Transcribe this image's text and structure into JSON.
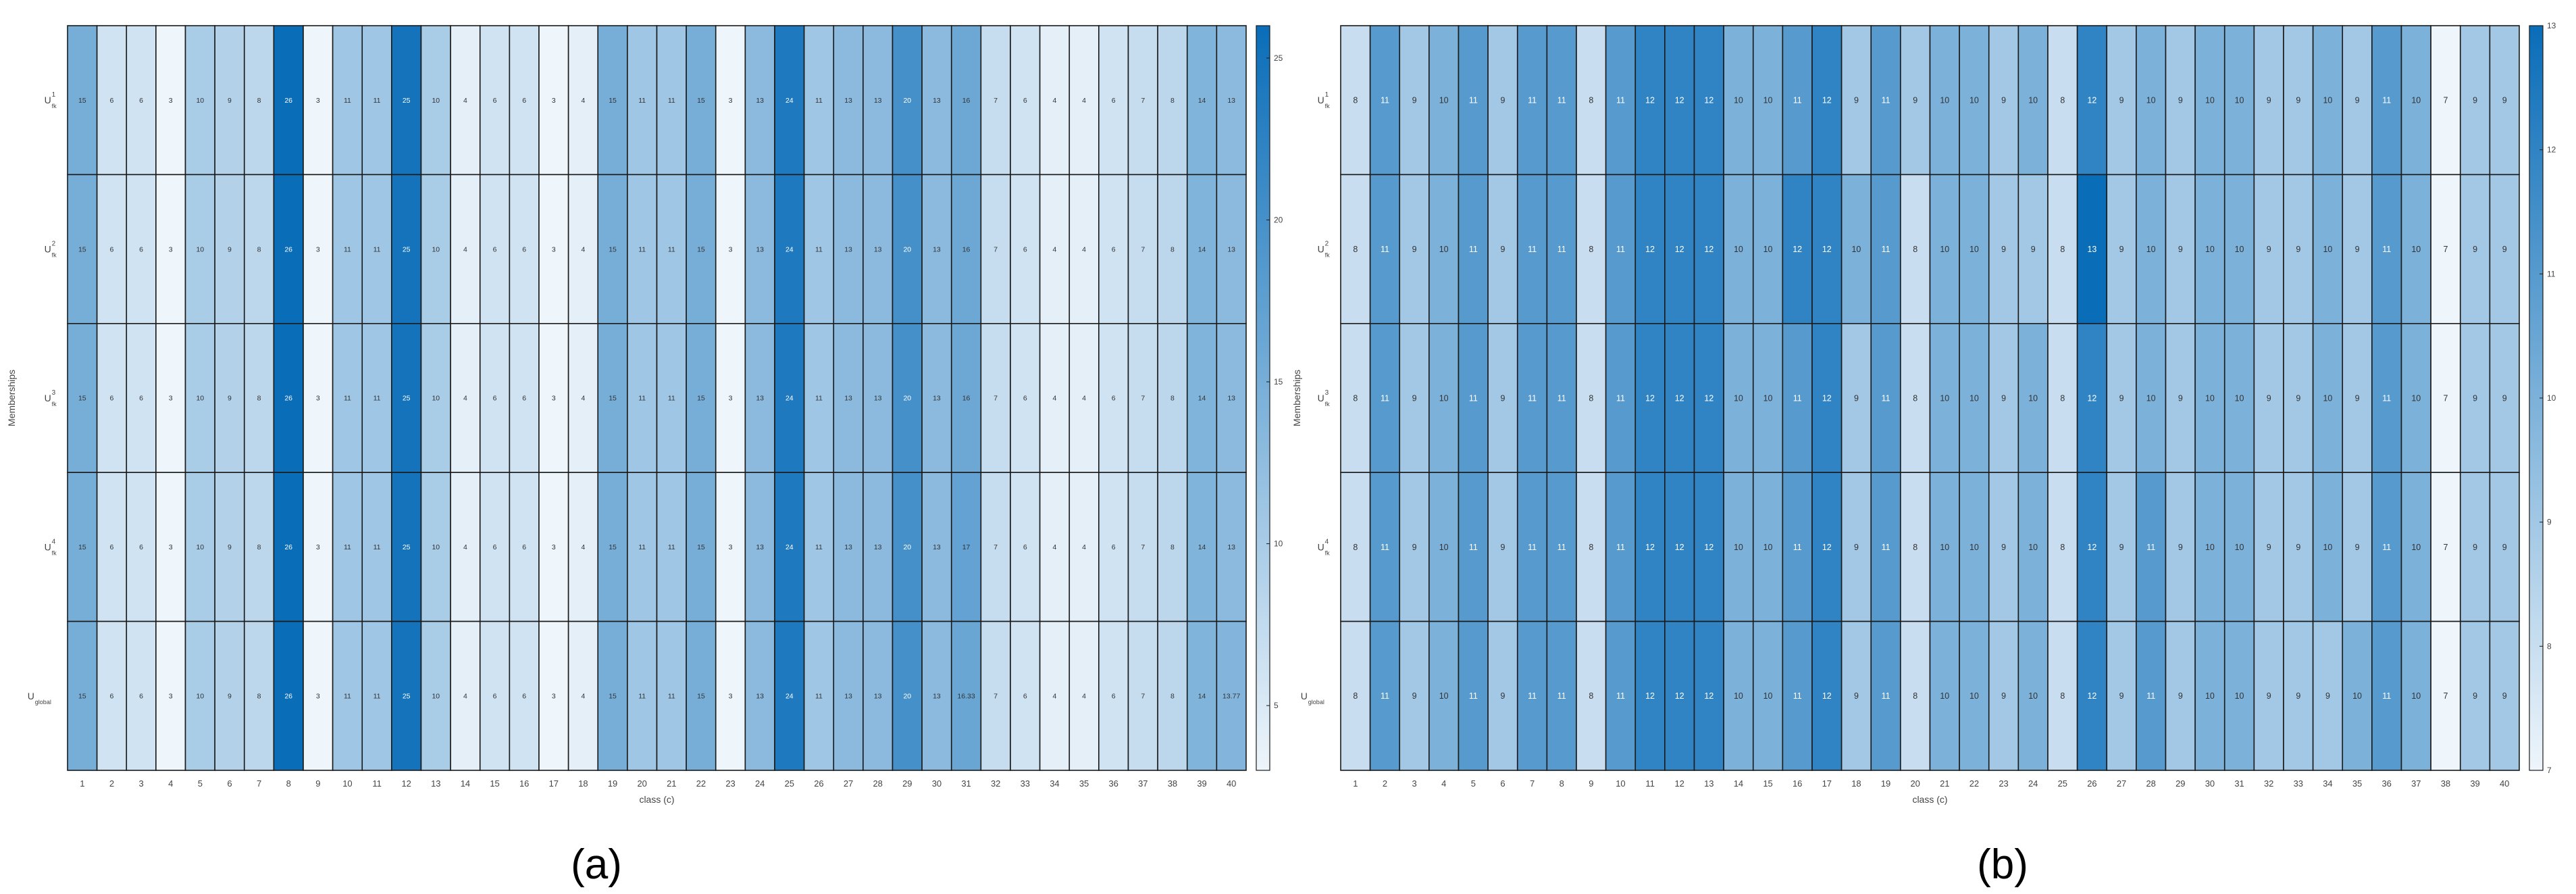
{
  "figure": {
    "panel_labels": [
      "(a)",
      "(b)"
    ]
  },
  "chart_data": [
    {
      "type": "heatmap",
      "panel": "(a)",
      "xlabel": "class (c)",
      "ylabel": "Memberships",
      "colormap": [
        "#eef5fb",
        "#0a6db8"
      ],
      "color_range": [
        3,
        26
      ],
      "colorbar_ticks": [
        5,
        10,
        15,
        20,
        25
      ],
      "rows": [
        "U_fk^1",
        "U_fk^2",
        "U_fk^3",
        "U_fk^4",
        "U_global"
      ],
      "row_labels": [
        {
          "base": "U",
          "sup": "1",
          "sub": "fk"
        },
        {
          "base": "U",
          "sup": "2",
          "sub": "fk"
        },
        {
          "base": "U",
          "sup": "3",
          "sub": "fk"
        },
        {
          "base": "U",
          "sup": "4",
          "sub": "fk"
        },
        {
          "base": "U",
          "sup": "",
          "sub": "global"
        }
      ],
      "columns": [
        "1",
        "2",
        "3",
        "4",
        "5",
        "6",
        "7",
        "8",
        "9",
        "10",
        "11",
        "12",
        "13",
        "14",
        "15",
        "16",
        "17",
        "18",
        "19",
        "20",
        "21",
        "22",
        "23",
        "24",
        "25",
        "26",
        "27",
        "28",
        "29",
        "30",
        "31",
        "32",
        "33",
        "34",
        "35",
        "36",
        "37",
        "38",
        "39",
        "40"
      ],
      "values": [
        [
          15,
          6,
          6,
          3,
          10,
          9,
          8,
          26,
          3,
          11,
          11,
          25,
          10,
          4,
          6,
          6,
          3,
          4,
          15,
          11,
          11,
          15,
          3,
          13,
          24,
          11,
          13,
          13,
          20,
          13,
          16,
          7,
          6,
          4,
          4,
          6,
          7,
          8,
          14,
          13
        ],
        [
          15,
          6,
          6,
          3,
          10,
          9,
          8,
          26,
          3,
          11,
          11,
          25,
          10,
          4,
          6,
          6,
          3,
          4,
          15,
          11,
          11,
          15,
          3,
          13,
          24,
          11,
          13,
          13,
          20,
          13,
          16,
          7,
          6,
          4,
          4,
          6,
          7,
          8,
          14,
          13
        ],
        [
          15,
          6,
          6,
          3,
          10,
          9,
          8,
          26,
          3,
          11,
          11,
          25,
          10,
          4,
          6,
          6,
          3,
          4,
          15,
          11,
          11,
          15,
          3,
          13,
          24,
          11,
          13,
          13,
          20,
          13,
          16,
          7,
          6,
          4,
          4,
          6,
          7,
          8,
          14,
          13
        ],
        [
          15,
          6,
          6,
          3,
          10,
          9,
          8,
          26,
          3,
          11,
          11,
          25,
          10,
          4,
          6,
          6,
          3,
          4,
          15,
          11,
          11,
          15,
          3,
          13,
          24,
          11,
          13,
          13,
          20,
          13,
          17,
          7,
          6,
          4,
          4,
          6,
          7,
          8,
          14,
          13
        ],
        [
          15,
          6,
          6,
          3,
          10,
          9,
          8,
          26,
          3,
          11,
          11,
          25,
          10,
          4,
          6,
          6,
          3,
          4,
          15,
          11,
          11,
          15,
          3,
          13,
          24,
          11,
          13,
          13,
          20,
          13,
          16.33,
          7,
          6,
          4,
          4,
          6,
          7,
          8,
          14,
          13.77
        ]
      ]
    },
    {
      "type": "heatmap",
      "panel": "(b)",
      "xlabel": "class (c)",
      "ylabel": "Memberships",
      "colormap": [
        "#eef5fb",
        "#0a6db8"
      ],
      "color_range": [
        7,
        13
      ],
      "colorbar_ticks": [
        7,
        8,
        9,
        10,
        11,
        12,
        13
      ],
      "rows": [
        "U_fk^1",
        "U_fk^2",
        "U_fk^3",
        "U_fk^4",
        "U_global"
      ],
      "row_labels": [
        {
          "base": "U",
          "sup": "1",
          "sub": "fk"
        },
        {
          "base": "U",
          "sup": "2",
          "sub": "fk"
        },
        {
          "base": "U",
          "sup": "3",
          "sub": "fk"
        },
        {
          "base": "U",
          "sup": "4",
          "sub": "fk"
        },
        {
          "base": "U",
          "sup": "",
          "sub": "global"
        }
      ],
      "columns": [
        "1",
        "2",
        "3",
        "4",
        "5",
        "6",
        "7",
        "8",
        "9",
        "10",
        "11",
        "12",
        "13",
        "14",
        "15",
        "16",
        "17",
        "18",
        "19",
        "20",
        "21",
        "22",
        "23",
        "24",
        "25",
        "26",
        "27",
        "28",
        "29",
        "30",
        "31",
        "32",
        "33",
        "34",
        "35",
        "36",
        "37",
        "38",
        "39",
        "40"
      ],
      "values": [
        [
          8,
          11,
          9,
          10,
          11,
          9,
          11,
          11,
          8,
          11,
          12,
          12,
          12,
          10,
          10,
          11,
          12,
          9,
          11,
          9,
          10,
          10,
          9,
          10,
          8,
          12,
          9,
          10,
          9,
          10,
          10,
          9,
          9,
          10,
          9,
          11,
          10,
          7,
          9,
          9
        ],
        [
          8,
          11,
          9,
          10,
          11,
          9,
          11,
          11,
          8,
          11,
          12,
          12,
          12,
          10,
          10,
          12,
          12,
          10,
          11,
          8,
          10,
          10,
          9,
          9,
          8,
          13,
          9,
          10,
          9,
          10,
          10,
          9,
          9,
          10,
          9,
          11,
          10,
          7,
          9,
          9
        ],
        [
          8,
          11,
          9,
          10,
          11,
          9,
          11,
          11,
          8,
          11,
          12,
          12,
          12,
          10,
          10,
          11,
          12,
          9,
          11,
          8,
          10,
          10,
          9,
          10,
          8,
          12,
          9,
          10,
          9,
          10,
          10,
          9,
          9,
          10,
          9,
          11,
          10,
          7,
          9,
          9
        ],
        [
          8,
          11,
          9,
          10,
          11,
          9,
          11,
          11,
          8,
          11,
          12,
          12,
          12,
          10,
          10,
          11,
          12,
          9,
          11,
          8,
          10,
          10,
          9,
          10,
          8,
          12,
          9,
          11,
          9,
          10,
          10,
          9,
          9,
          10,
          9,
          11,
          10,
          7,
          9,
          9
        ],
        [
          8,
          11,
          9,
          10,
          11,
          9,
          11,
          11,
          8,
          11,
          12,
          12,
          12,
          10,
          10,
          11,
          12,
          9,
          11,
          8,
          10,
          10,
          9,
          10,
          8,
          12,
          9,
          11,
          9,
          10,
          10,
          9,
          9,
          9,
          10,
          11,
          10,
          7,
          9,
          9
        ]
      ]
    }
  ]
}
